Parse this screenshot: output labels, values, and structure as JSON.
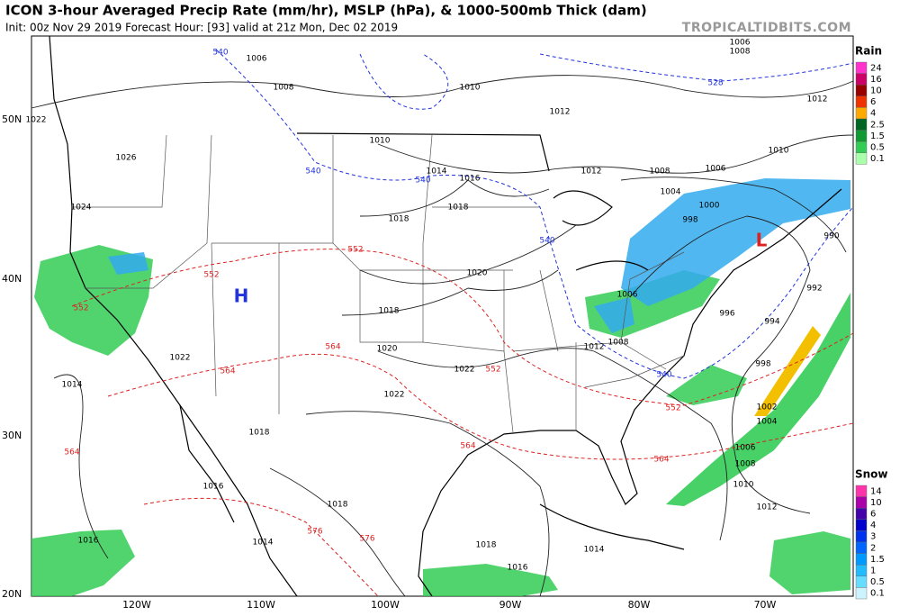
{
  "header": {
    "title": "ICON 3-hour Averaged Precip Rate (mm/hr), MSLP (hPa), & 1000-500mb Thick (dam)",
    "subtitle": "Init: 00z Nov 29 2019   Forecast Hour: [93]   valid at 21z Mon, Dec 02 2019",
    "source": "TROPICALTIDBITS.COM"
  },
  "map": {
    "lat_labels": [
      "50N",
      "40N",
      "30N",
      "20N"
    ],
    "lon_labels": [
      "120W",
      "110W",
      "100W",
      "90W",
      "80W",
      "70W"
    ],
    "pressure_centers": [
      "H",
      "L"
    ],
    "isobar_labels": [
      "1008",
      "1006",
      "1010",
      "1012",
      "1010",
      "1014",
      "1016",
      "1018",
      "1018",
      "1020",
      "1018",
      "1020",
      "1022",
      "1022",
      "1018",
      "1018",
      "1014",
      "1016",
      "1014",
      "1016",
      "1022",
      "1018",
      "1016",
      "1014",
      "1012",
      "1010",
      "1008",
      "1006",
      "1004",
      "1002",
      "996",
      "994",
      "992",
      "990",
      "998",
      "1000",
      "998",
      "1004",
      "1006",
      "1008",
      "1012",
      "1012",
      "1008",
      "1006",
      "1010",
      "1006",
      "1008",
      "1012",
      "1022",
      "1024",
      "1026"
    ],
    "thickness_labels_warm": [
      "552",
      "552",
      "552",
      "564",
      "564",
      "564",
      "552",
      "552",
      "564",
      "576",
      "576",
      "564"
    ],
    "thickness_labels_cold": [
      "540",
      "540",
      "540",
      "540",
      "540",
      "528"
    ]
  },
  "legend": {
    "rain": {
      "title": "Rain",
      "levels": [
        "24",
        "16",
        "10",
        "6",
        "4",
        "2.5",
        "1.5",
        "0.5",
        "0.1"
      ]
    },
    "snow": {
      "title": "Snow",
      "levels": [
        "14",
        "10",
        "6",
        "4",
        "3",
        "2",
        "1.5",
        "1",
        "0.5",
        "0.1"
      ]
    }
  }
}
